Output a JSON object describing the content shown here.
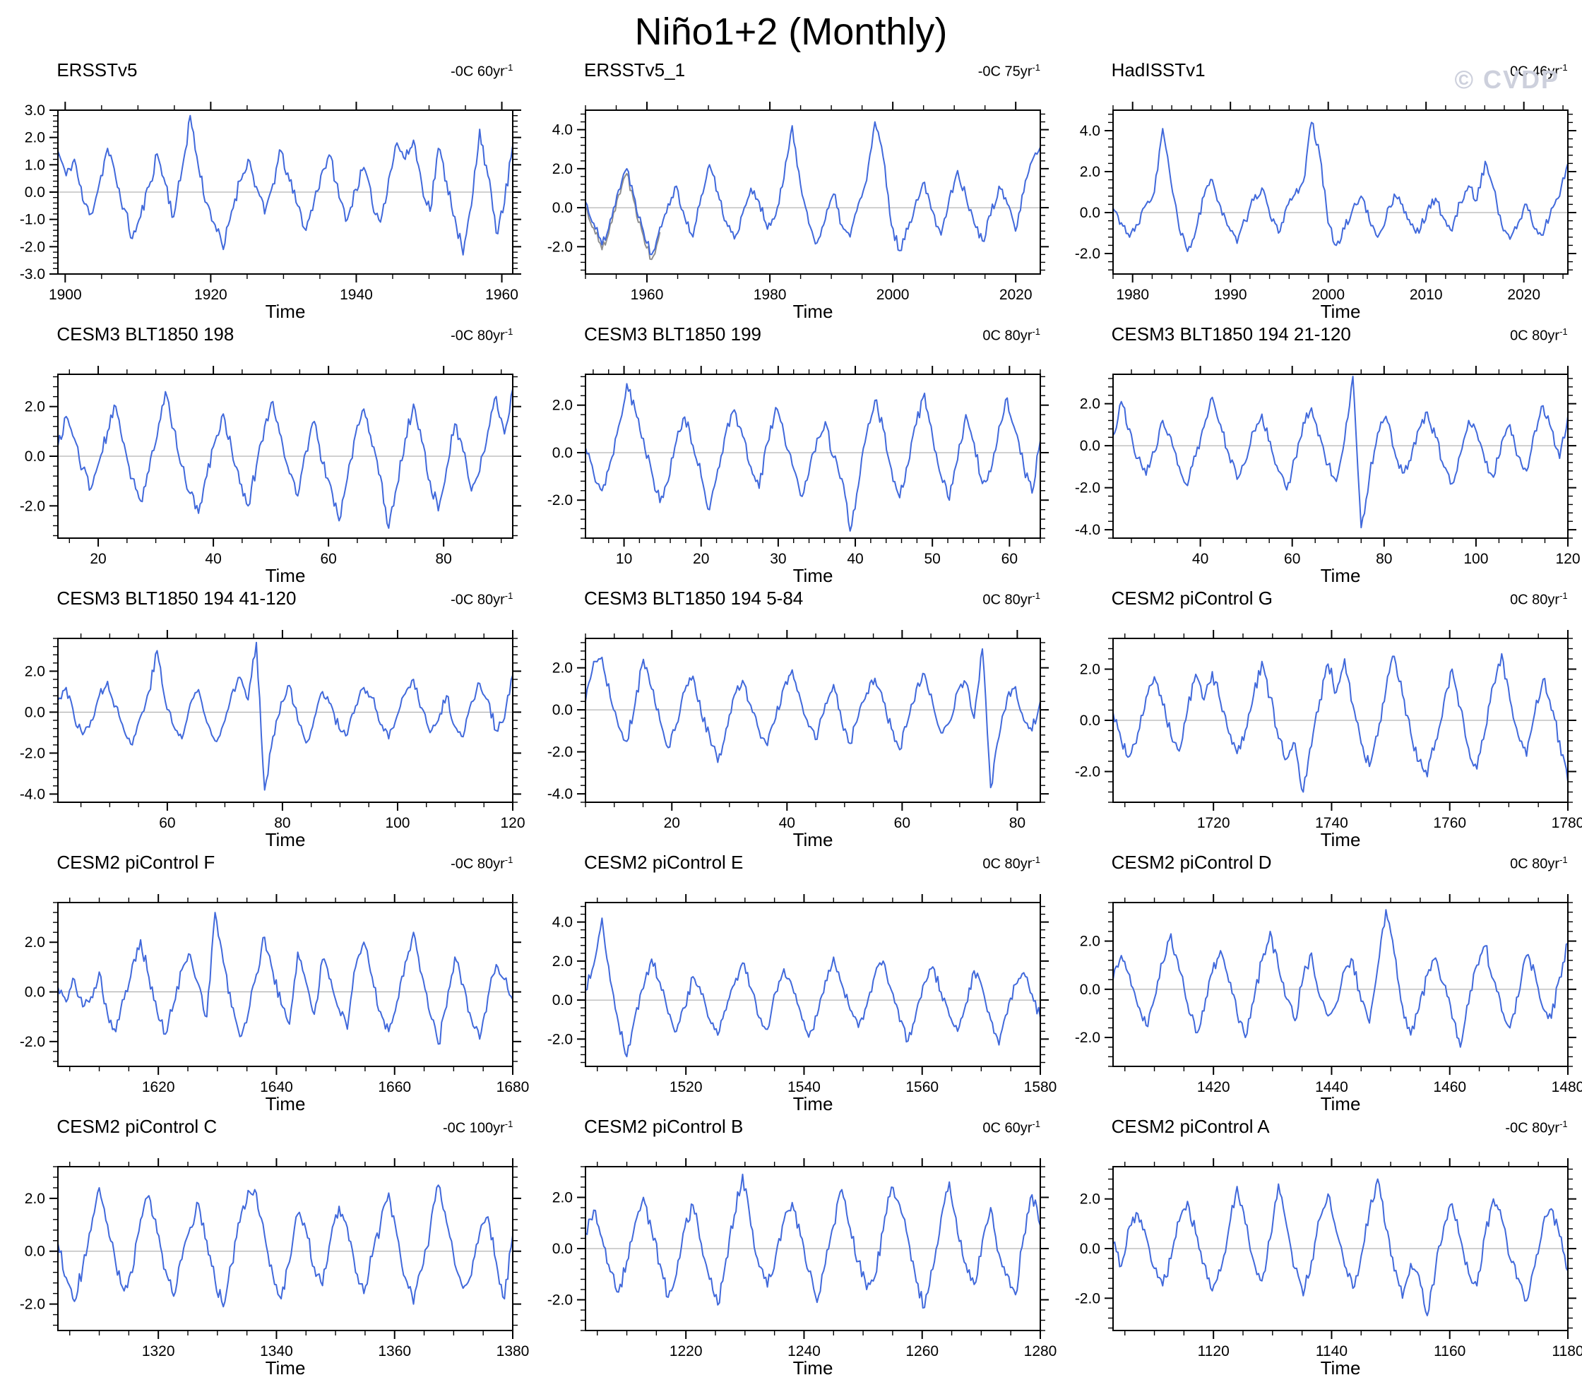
{
  "page": {
    "title": "Niño1+2 (Monthly)",
    "watermark": "© CVDP"
  },
  "colors": {
    "line": "#4169db",
    "shadow": "#8f8f8f",
    "zero_line": "#a0a0a0",
    "axis": "#000000",
    "watermark": "#cdd0dc"
  },
  "time_axis_label": "Time",
  "chart_data": [
    {
      "type": "line",
      "title": "ERSSTv5",
      "trend": "-0C 60yr",
      "trend_sup": "-1",
      "xlabel": "Time",
      "xlim": [
        1899,
        1961.5
      ],
      "xticks": [
        1900,
        1920,
        1940,
        1960
      ],
      "xminor": 5,
      "ylim": [
        -3,
        3
      ],
      "yticks": [
        -3,
        -2,
        -1,
        0,
        1,
        2,
        3
      ],
      "yminor": 0.2,
      "seed": 11,
      "values": [
        1.5,
        0.6,
        1.2,
        -0.3,
        -0.8,
        0.3,
        1.6,
        0.5,
        -0.6,
        -1.7,
        -0.9,
        0.2,
        1.4,
        0.3,
        -0.9,
        0.8,
        2.8,
        0.9,
        -0.4,
        -1.2,
        -2.1,
        -0.7,
        0.4,
        1.2,
        0.2,
        -0.8,
        0.3,
        1.5,
        0.4,
        -0.5,
        -1.4,
        -0.3,
        0.8,
        1.3,
        -0.2,
        -1.0,
        0.1,
        0.9,
        -0.4,
        -1.1,
        0.5,
        1.8,
        1.2,
        1.9,
        0.3,
        -0.7,
        1.6,
        0.4,
        -0.9,
        -2.3,
        -0.5,
        2.3,
        0.6,
        -1.5,
        -0.4,
        1.7
      ]
    },
    {
      "type": "line",
      "title": "ERSSTv5_1",
      "trend": "-0C 75yr",
      "trend_sup": "-1",
      "xlabel": "Time",
      "xlim": [
        1950,
        2024
      ],
      "xticks": [
        1960,
        1980,
        2000,
        2020
      ],
      "xminor": 5,
      "ylim": [
        -3.4,
        5
      ],
      "yticks": [
        -2,
        0,
        2,
        4
      ],
      "yminor": 0.4,
      "seed": 22,
      "shadow_frac": 0.17,
      "shadow_offset": -0.25,
      "values": [
        0.3,
        -0.8,
        -1.9,
        -0.6,
        0.9,
        2.0,
        0.4,
        -1.2,
        -2.4,
        -1.0,
        0.2,
        1.1,
        -0.5,
        -1.5,
        0.6,
        2.2,
        0.8,
        -0.7,
        -1.6,
        -0.3,
        1.0,
        0.3,
        -1.1,
        -0.4,
        1.5,
        4.2,
        1.2,
        -0.8,
        -1.8,
        -0.6,
        0.7,
        -0.9,
        -1.5,
        0.2,
        1.4,
        4.4,
        2.6,
        -0.9,
        -2.2,
        -1.1,
        0.4,
        1.3,
        -0.2,
        -1.4,
        0.5,
        1.9,
        0.6,
        -0.8,
        -1.7,
        -0.4,
        1.1,
        0.2,
        -1.2,
        0.8,
        2.4,
        3.1
      ]
    },
    {
      "type": "line",
      "title": "HadISSTv1",
      "trend": "0C 46yr",
      "trend_sup": "-1",
      "xlabel": "Time",
      "xlim": [
        1978,
        2024.5
      ],
      "xticks": [
        1980,
        1990,
        2000,
        2010,
        2020
      ],
      "xminor": 2,
      "ylim": [
        -3,
        5
      ],
      "yticks": [
        -2,
        0,
        2,
        4
      ],
      "yminor": 0.4,
      "seed": 33,
      "values": [
        0.2,
        -0.5,
        -1.2,
        -0.6,
        0.4,
        1.0,
        4.1,
        1.5,
        -0.8,
        -1.9,
        -0.9,
        0.8,
        1.6,
        0.3,
        -0.7,
        -1.5,
        -0.4,
        0.6,
        1.2,
        -0.2,
        -1.0,
        0.3,
        0.9,
        1.5,
        4.4,
        2.8,
        -0.5,
        -1.6,
        -0.8,
        0.2,
        0.8,
        -0.4,
        -1.2,
        -0.3,
        0.9,
        0.4,
        -0.6,
        -1.0,
        0.1,
        0.7,
        -0.3,
        -0.9,
        0.5,
        1.3,
        0.6,
        2.5,
        1.2,
        -0.6,
        -1.3,
        -0.5,
        0.4,
        -0.8,
        -1.1,
        0.2,
        0.8,
        2.4
      ]
    },
    {
      "type": "line",
      "title": "CESM3 BLT1850 198",
      "trend": "-0C 80yr",
      "trend_sup": "-1",
      "xlabel": "Time",
      "xlim": [
        13,
        92
      ],
      "xticks": [
        20,
        40,
        60,
        80
      ],
      "xminor": 5,
      "ylim": [
        -3.3,
        3.3
      ],
      "yticks": [
        -2,
        0,
        2
      ],
      "yminor": 0.4,
      "seed": 44,
      "values": [
        0.4,
        1.6,
        0.7,
        -0.5,
        -1.3,
        -0.2,
        1.0,
        2.0,
        0.5,
        -0.9,
        -1.8,
        -0.6,
        0.8,
        2.6,
        1.1,
        -0.4,
        -1.5,
        -2.3,
        -0.8,
        0.6,
        1.7,
        0.3,
        -1.1,
        -2.0,
        -0.4,
        1.2,
        2.2,
        0.8,
        -0.7,
        -1.6,
        0.2,
        1.4,
        -0.3,
        -1.2,
        -2.6,
        -0.9,
        0.9,
        1.9,
        0.4,
        -0.8,
        -2.9,
        -1.2,
        0.7,
        2.1,
        0.6,
        -1.0,
        -2.2,
        -0.5,
        1.3,
        0.2,
        -1.4,
        -0.6,
        1.0,
        2.4,
        0.9,
        2.7
      ]
    },
    {
      "type": "line",
      "title": "CESM3 BLT1850 199",
      "trend": "0C 80yr",
      "trend_sup": "-1",
      "xlabel": "Time",
      "xlim": [
        5,
        64
      ],
      "xticks": [
        10,
        20,
        30,
        40,
        50,
        60
      ],
      "xminor": 2,
      "ylim": [
        -3.6,
        3.3
      ],
      "yticks": [
        -2,
        0,
        2
      ],
      "yminor": 0.4,
      "seed": 55,
      "values": [
        0.2,
        -0.9,
        -1.6,
        -0.4,
        1.1,
        2.9,
        1.8,
        0.6,
        -0.8,
        -2.1,
        -1.2,
        0.5,
        1.5,
        0.3,
        -1.0,
        -2.4,
        -0.7,
        0.9,
        1.8,
        0.7,
        -0.6,
        -1.5,
        0.4,
        1.9,
        0.8,
        -0.5,
        -1.8,
        -0.9,
        0.6,
        1.3,
        -0.2,
        -1.1,
        -3.3,
        -1.4,
        0.8,
        2.2,
        1.0,
        -0.7,
        -1.9,
        -0.5,
        1.2,
        2.5,
        0.6,
        -1.0,
        -2.0,
        -0.3,
        1.6,
        0.4,
        -1.3,
        -0.8,
        1.1,
        2.3,
        0.9,
        -0.6,
        -1.7,
        0.5
      ]
    },
    {
      "type": "line",
      "title": "CESM3 BLT1850 194 21-120",
      "trend": "0C 80yr",
      "trend_sup": "-1",
      "xlabel": "Time",
      "xlim": [
        21,
        120
      ],
      "xticks": [
        40,
        60,
        80,
        100,
        120
      ],
      "xminor": 5,
      "ylim": [
        -4.4,
        3.4
      ],
      "yticks": [
        -4,
        -2,
        0,
        2
      ],
      "yminor": 0.4,
      "seed": 66,
      "values": [
        0.5,
        2.1,
        0.8,
        -0.6,
        -1.4,
        -0.3,
        1.2,
        0.4,
        -1.0,
        -1.9,
        -0.5,
        0.9,
        2.3,
        1.0,
        -0.4,
        -1.6,
        -0.8,
        0.7,
        1.5,
        0.2,
        -1.2,
        -2.1,
        -0.6,
        1.1,
        1.8,
        0.5,
        -0.9,
        -1.7,
        0.3,
        3.3,
        -3.9,
        -1.5,
        0.6,
        1.4,
        -0.2,
        -1.3,
        -0.7,
        0.8,
        1.6,
        0.4,
        -1.0,
        -1.8,
        -0.4,
        1.2,
        0.6,
        -0.8,
        -1.5,
        0.2,
        1.0,
        -0.5,
        -1.2,
        0.7,
        1.9,
        0.8,
        -0.6,
        1.4
      ]
    },
    {
      "type": "line",
      "title": "CESM3 BLT1850 194 41-120",
      "trend": "-0C 80yr",
      "trend_sup": "-1",
      "xlabel": "Time",
      "xlim": [
        41,
        120
      ],
      "xticks": [
        60,
        80,
        100,
        120
      ],
      "xminor": 5,
      "ylim": [
        -4.4,
        3.6
      ],
      "yticks": [
        -4,
        -2,
        0,
        2
      ],
      "yminor": 0.4,
      "seed": 77,
      "values": [
        0.6,
        1.2,
        -0.3,
        -1.1,
        -0.4,
        0.8,
        1.5,
        0.3,
        -0.9,
        -1.6,
        -0.2,
        1.0,
        3.0,
        0.5,
        -0.7,
        -1.3,
        0.4,
        1.1,
        -0.5,
        -1.4,
        -0.6,
        0.9,
        1.7,
        0.6,
        3.4,
        -3.8,
        -1.2,
        0.5,
        1.3,
        -0.4,
        -1.5,
        -0.3,
        1.0,
        0.4,
        -0.8,
        -1.1,
        0.3,
        1.2,
        0.7,
        -0.6,
        -1.3,
        -0.2,
        0.9,
        1.6,
        0.2,
        -1.0,
        -0.4,
        0.8,
        -0.7,
        -1.2,
        0.5,
        1.4,
        0.6,
        -0.9,
        -0.3,
        1.8
      ]
    },
    {
      "type": "line",
      "title": "CESM3 BLT1850 194 5-84",
      "trend": "0C 80yr",
      "trend_sup": "-1",
      "xlabel": "Time",
      "xlim": [
        5,
        84
      ],
      "xticks": [
        20,
        40,
        60,
        80
      ],
      "xminor": 5,
      "ylim": [
        -4.4,
        3.4
      ],
      "yticks": [
        -4,
        -2,
        0,
        2
      ],
      "yminor": 0.4,
      "seed": 88,
      "values": [
        0.4,
        2.3,
        2.5,
        0.6,
        -0.8,
        -1.5,
        0.3,
        2.4,
        1.0,
        -0.5,
        -1.8,
        -0.7,
        0.9,
        1.6,
        -0.2,
        -1.2,
        -2.5,
        -0.9,
        0.7,
        1.4,
        0.2,
        -1.0,
        -1.7,
        -0.4,
        1.1,
        1.9,
        0.5,
        -0.8,
        -1.4,
        0.3,
        1.2,
        -0.6,
        -1.6,
        -0.3,
        0.8,
        1.5,
        0.4,
        -0.9,
        -1.9,
        -0.5,
        1.0,
        1.7,
        0.3,
        -1.1,
        -0.6,
        0.9,
        1.3,
        -0.4,
        2.9,
        -3.7,
        -1.3,
        0.6,
        1.1,
        -0.5,
        -1.0,
        0.4
      ]
    },
    {
      "type": "line",
      "title": "CESM2 piControl G",
      "trend": "0C 80yr",
      "trend_sup": "-1",
      "xlabel": "Time",
      "xlim": [
        1703,
        1780
      ],
      "xticks": [
        1720,
        1740,
        1760,
        1780
      ],
      "xminor": 5,
      "ylim": [
        -3.2,
        3.2
      ],
      "yticks": [
        -2,
        0,
        2
      ],
      "yminor": 0.4,
      "seed": 99,
      "values": [
        0.3,
        -0.8,
        -1.4,
        -0.5,
        0.9,
        1.7,
        0.6,
        -0.6,
        -1.2,
        0.4,
        1.8,
        0.8,
        1.9,
        0.7,
        -0.5,
        -1.3,
        -0.4,
        1.0,
        2.3,
        0.9,
        -0.7,
        -1.5,
        -0.9,
        -2.8,
        -1.0,
        0.8,
        2.2,
        1.1,
        2.4,
        0.6,
        -0.9,
        -1.8,
        -0.6,
        1.2,
        2.5,
        1.0,
        -0.5,
        -1.6,
        -2.2,
        -0.8,
        0.7,
        2.0,
        0.5,
        -1.1,
        -1.9,
        -0.4,
        1.4,
        2.6,
        0.8,
        -0.6,
        -1.4,
        0.3,
        1.6,
        0.4,
        -0.8,
        -2.4
      ]
    },
    {
      "type": "line",
      "title": "CESM2 piControl F",
      "trend": "-0C 80yr",
      "trend_sup": "-1",
      "xlabel": "Time",
      "xlim": [
        1603,
        1680
      ],
      "xticks": [
        1620,
        1640,
        1660,
        1680
      ],
      "xminor": 5,
      "ylim": [
        -3,
        3.6
      ],
      "yticks": [
        -2,
        0,
        2
      ],
      "yminor": 0.4,
      "seed": 101,
      "values": [
        0.2,
        -0.4,
        0.5,
        -0.6,
        -0.2,
        0.8,
        -0.9,
        -1.6,
        -0.3,
        1.1,
        2.1,
        0.6,
        -0.8,
        -1.7,
        -0.5,
        0.9,
        1.5,
        0.3,
        -1.0,
        3.2,
        1.2,
        -0.6,
        -1.8,
        -0.9,
        0.7,
        2.2,
        0.8,
        -0.5,
        -1.3,
        1.6,
        0.4,
        -0.9,
        1.3,
        0.5,
        -0.7,
        -1.5,
        1.0,
        2.0,
        0.6,
        -0.8,
        -1.6,
        -0.4,
        1.2,
        2.4,
        0.7,
        -0.9,
        -2.1,
        -0.6,
        1.4,
        0.3,
        -1.1,
        -1.9,
        -0.2,
        1.1,
        0.5,
        -0.3
      ]
    },
    {
      "type": "line",
      "title": "CESM2 piControl E",
      "trend": "0C 80yr",
      "trend_sup": "-1",
      "xlabel": "Time",
      "xlim": [
        1503,
        1580
      ],
      "xticks": [
        1520,
        1540,
        1560,
        1580
      ],
      "xminor": 5,
      "ylim": [
        -3.4,
        5
      ],
      "yticks": [
        -2,
        0,
        2,
        4
      ],
      "yminor": 0.4,
      "seed": 202,
      "values": [
        0.5,
        1.8,
        4.2,
        1.0,
        -1.2,
        -2.9,
        -0.8,
        0.6,
        2.1,
        0.9,
        -0.7,
        -1.6,
        -0.4,
        1.2,
        0.3,
        -1.0,
        -1.8,
        -0.5,
        0.8,
        1.9,
        0.6,
        -0.9,
        -1.5,
        0.4,
        1.6,
        0.7,
        -0.6,
        -1.9,
        -0.8,
        1.0,
        2.2,
        0.8,
        -0.5,
        -1.4,
        -0.3,
        1.3,
        2.0,
        0.5,
        -1.1,
        -2.1,
        -0.6,
        0.9,
        1.7,
        0.4,
        -0.8,
        -1.6,
        -0.2,
        1.5,
        0.6,
        -1.0,
        -2.3,
        -0.7,
        0.8,
        1.4,
        0.3,
        -0.9
      ]
    },
    {
      "type": "line",
      "title": "CESM2 piControl D",
      "trend": "0C 80yr",
      "trend_sup": "-1",
      "xlabel": "Time",
      "xlim": [
        1403,
        1480
      ],
      "xticks": [
        1420,
        1440,
        1460,
        1480
      ],
      "xminor": 5,
      "ylim": [
        -3.2,
        3.6
      ],
      "yticks": [
        -2,
        0,
        2
      ],
      "yminor": 0.4,
      "seed": 303,
      "values": [
        0.4,
        1.4,
        0.6,
        -0.7,
        -1.5,
        -0.4,
        1.1,
        2.3,
        0.8,
        -0.6,
        -1.8,
        -0.9,
        0.7,
        1.6,
        0.3,
        -1.0,
        -2.0,
        -0.5,
        1.2,
        2.4,
        0.9,
        -0.4,
        -1.3,
        0.5,
        1.5,
        -0.3,
        -1.1,
        -0.6,
        0.8,
        1.2,
        -0.5,
        -1.4,
        0.9,
        3.3,
        1.5,
        -0.7,
        -1.9,
        -0.8,
        0.6,
        1.3,
        0.2,
        -1.2,
        -2.4,
        -0.6,
        1.0,
        1.8,
        0.4,
        -0.9,
        -1.6,
        -0.3,
        1.4,
        0.7,
        -0.8,
        -1.2,
        0.5,
        1.9
      ]
    },
    {
      "type": "line",
      "title": "CESM2 piControl C",
      "trend": "-0C 100yr",
      "trend_sup": "-1",
      "xlabel": "Time",
      "xlim": [
        1303,
        1380
      ],
      "xticks": [
        1320,
        1340,
        1360,
        1380
      ],
      "xminor": 5,
      "ylim": [
        -3,
        3.2
      ],
      "yticks": [
        -2,
        0,
        2
      ],
      "yminor": 0.4,
      "seed": 404,
      "values": [
        0.3,
        -1.0,
        -1.9,
        -0.6,
        0.8,
        2.4,
        1.0,
        -0.5,
        -1.5,
        -0.8,
        1.2,
        2.1,
        0.7,
        -0.7,
        -1.7,
        -0.3,
        0.9,
        1.8,
        0.4,
        -1.1,
        -2.1,
        -0.5,
        1.1,
        2.3,
        2.2,
        0.6,
        -0.9,
        -1.8,
        -0.4,
        1.4,
        0.8,
        -0.6,
        -1.3,
        0.5,
        1.7,
        0.9,
        -0.8,
        -1.6,
        -0.2,
        1.0,
        2.2,
        0.6,
        -1.0,
        -2.0,
        -0.7,
        0.8,
        2.5,
        1.1,
        -0.5,
        -1.4,
        -0.9,
        0.7,
        1.3,
        -0.4,
        -1.8,
        0.6
      ]
    },
    {
      "type": "line",
      "title": "CESM2 piControl B",
      "trend": "0C 60yr",
      "trend_sup": "-1",
      "xlabel": "Time",
      "xlim": [
        1203,
        1280
      ],
      "xticks": [
        1220,
        1240,
        1260,
        1280
      ],
      "xminor": 5,
      "ylim": [
        -3.2,
        3.2
      ],
      "yticks": [
        -2,
        0,
        2
      ],
      "yminor": 0.4,
      "seed": 505,
      "values": [
        0.6,
        1.5,
        0.4,
        -0.9,
        -1.7,
        -0.5,
        1.0,
        2.0,
        0.7,
        -0.6,
        -1.9,
        -1.0,
        0.8,
        1.7,
        0.2,
        -1.2,
        -2.2,
        -0.4,
        1.3,
        2.9,
        0.9,
        -0.7,
        -1.5,
        -0.3,
        1.1,
        1.8,
        0.5,
        -0.9,
        -2.1,
        -0.6,
        0.9,
        2.3,
        0.8,
        -0.5,
        -1.6,
        -1.1,
        0.7,
        2.4,
        1.7,
        0.4,
        -1.3,
        -2.3,
        -0.8,
        1.2,
        2.6,
        0.6,
        -0.6,
        -1.4,
        0.3,
        1.6,
        -0.2,
        -1.0,
        -1.8,
        0.5,
        2.1,
        0.9
      ]
    },
    {
      "type": "line",
      "title": "CESM2 piControl A",
      "trend": "-0C 80yr",
      "trend_sup": "-1",
      "xlabel": "Time",
      "xlim": [
        1103,
        1180
      ],
      "xticks": [
        1120,
        1140,
        1160,
        1180
      ],
      "xminor": 5,
      "ylim": [
        -3.3,
        3.3
      ],
      "yticks": [
        -2,
        0,
        2
      ],
      "yminor": 0.4,
      "seed": 606,
      "values": [
        0.2,
        -0.7,
        0.9,
        1.4,
        0.5,
        -0.8,
        -1.5,
        -0.4,
        1.1,
        1.9,
        0.6,
        -0.6,
        -1.7,
        -0.9,
        0.8,
        2.5,
        1.0,
        -0.5,
        -1.3,
        0.4,
        2.6,
        0.9,
        -0.8,
        -1.9,
        -0.5,
        1.2,
        2.2,
        0.7,
        -0.7,
        -1.6,
        -0.3,
        1.5,
        2.8,
        0.8,
        -0.9,
        -2.0,
        -0.6,
        -1.1,
        -2.7,
        -0.8,
        0.9,
        1.8,
        0.4,
        -1.0,
        -1.5,
        0.6,
        2.0,
        1.2,
        -0.4,
        -1.2,
        -2.1,
        -0.7,
        1.0,
        1.6,
        0.5,
        -0.9
      ]
    }
  ]
}
